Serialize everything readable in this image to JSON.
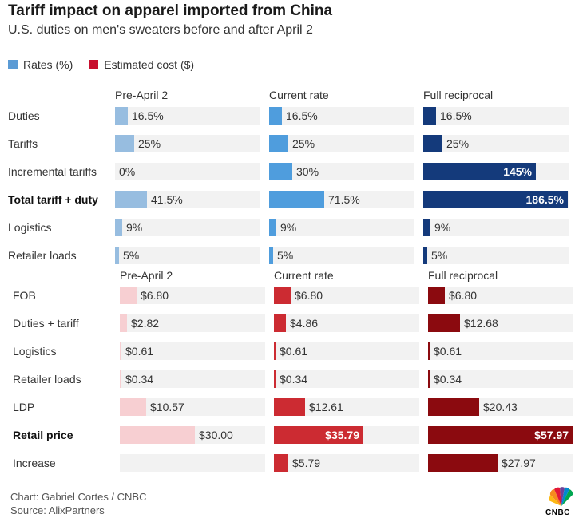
{
  "header": {
    "title": "Tariff impact on apparel imported from China",
    "subtitle": "U.S. duties on men's sweaters before and after April 2"
  },
  "legend": [
    {
      "label": "Rates (%)",
      "color": "#5b9bd5"
    },
    {
      "label": "Estimated cost ($)",
      "color": "#c8102e"
    }
  ],
  "footer": {
    "credit": "Chart: Gabriel Cortes / CNBC",
    "source": "Source: AlixPartners",
    "logo_text": "CNBC"
  },
  "chart_data": [
    {
      "type": "bar",
      "unit": "%",
      "columns": [
        "Pre-April 2",
        "Current rate",
        "Full reciprocal"
      ],
      "colors": [
        "#97bde0",
        "#4f9ddd",
        "#143a7b"
      ],
      "rows": [
        {
          "label": "Duties",
          "bold": false,
          "values": [
            16.5,
            16.5,
            16.5
          ],
          "display": [
            "16.5%",
            "16.5%",
            "16.5%"
          ]
        },
        {
          "label": "Tariffs",
          "bold": false,
          "values": [
            25,
            25,
            25
          ],
          "display": [
            "25%",
            "25%",
            "25%"
          ]
        },
        {
          "label": "Incremental tariffs",
          "bold": false,
          "values": [
            0,
            30,
            145
          ],
          "display": [
            "0%",
            "30%",
            "145%"
          ]
        },
        {
          "label": "Total tariff + duty",
          "bold": true,
          "values": [
            41.5,
            71.5,
            186.5
          ],
          "display": [
            "41.5%",
            "71.5%",
            "186.5%"
          ]
        },
        {
          "label": "Logistics",
          "bold": false,
          "values": [
            9,
            9,
            9
          ],
          "display": [
            "9%",
            "9%",
            "9%"
          ]
        },
        {
          "label": "Retailer loads",
          "bold": false,
          "values": [
            5,
            5,
            5
          ],
          "display": [
            "5%",
            "5%",
            "5%"
          ]
        }
      ],
      "xlim": [
        0,
        186.5
      ]
    },
    {
      "type": "bar",
      "unit": "$",
      "columns": [
        "Pre-April 2",
        "Current rate",
        "Full reciprocal"
      ],
      "colors": [
        "#f7cfd2",
        "#cc2b32",
        "#8b0a0f"
      ],
      "rows": [
        {
          "label": "FOB",
          "bold": false,
          "values": [
            6.8,
            6.8,
            6.8
          ],
          "display": [
            "$6.80",
            "$6.80",
            "$6.80"
          ]
        },
        {
          "label": "Duties + tariff",
          "bold": false,
          "values": [
            2.82,
            4.86,
            12.68
          ],
          "display": [
            "$2.82",
            "$4.86",
            "$12.68"
          ]
        },
        {
          "label": "Logistics",
          "bold": false,
          "values": [
            0.61,
            0.61,
            0.61
          ],
          "display": [
            "$0.61",
            "$0.61",
            "$0.61"
          ]
        },
        {
          "label": "Retailer loads",
          "bold": false,
          "values": [
            0.34,
            0.34,
            0.34
          ],
          "display": [
            "$0.34",
            "$0.34",
            "$0.34"
          ]
        },
        {
          "label": "LDP",
          "bold": false,
          "values": [
            10.57,
            12.61,
            20.43
          ],
          "display": [
            "$10.57",
            "$12.61",
            "$20.43"
          ]
        },
        {
          "label": "Retail price",
          "bold": true,
          "values": [
            30.0,
            35.79,
            57.97
          ],
          "display": [
            "$30.00",
            "$35.79",
            "$57.97"
          ]
        },
        {
          "label": "Increase",
          "bold": false,
          "values": [
            null,
            5.79,
            27.97
          ],
          "display": [
            "",
            "$5.79",
            "$27.97"
          ]
        }
      ],
      "xlim": [
        0,
        57.97
      ]
    }
  ]
}
